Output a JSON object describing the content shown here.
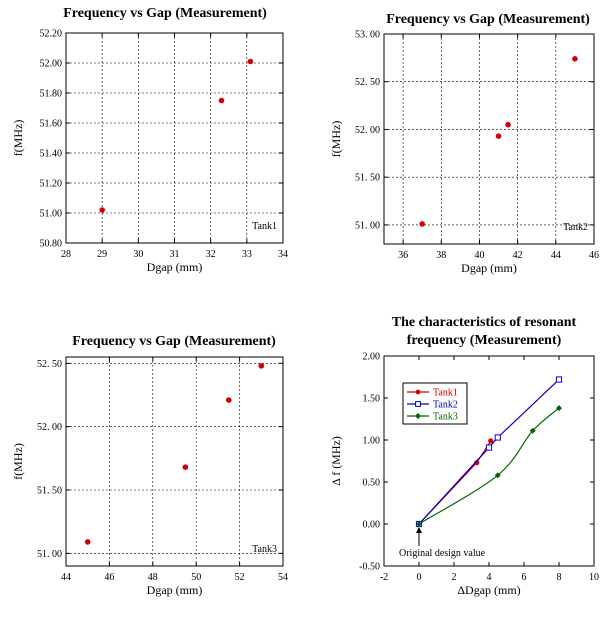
{
  "chart_data": [
    {
      "type": "scatter",
      "title": "Frequency vs Gap (Measurement)",
      "xlabel": "Dgap (mm)",
      "ylabel": "f(MHz)",
      "xlim": [
        28,
        34
      ],
      "ylim": [
        50.8,
        52.2
      ],
      "xticks": [
        "28",
        "29",
        "30",
        "31",
        "32",
        "33",
        "34"
      ],
      "yticks": [
        "50.80",
        "51.00",
        "51.20",
        "51.40",
        "51.60",
        "51.80",
        "52.00",
        "52.20"
      ],
      "grid": true,
      "annotation": "Tank1",
      "marker_color": "#d40000",
      "points": [
        {
          "x": 29.0,
          "y": 51.02
        },
        {
          "x": 32.3,
          "y": 51.75
        },
        {
          "x": 33.1,
          "y": 52.01
        }
      ]
    },
    {
      "type": "scatter",
      "title": "Frequency vs Gap (Measurement)",
      "xlabel": "Dgap (mm)",
      "ylabel": "f(MHz)",
      "xlim": [
        35,
        46
      ],
      "ylim": [
        50.8,
        53.0
      ],
      "xticks": [
        "36",
        "38",
        "40",
        "42",
        "44",
        "46"
      ],
      "yticks": [
        "51. 00",
        "51. 50",
        "52. 00",
        "52. 50",
        "53. 00"
      ],
      "grid": true,
      "annotation": "Tank2",
      "marker_color": "#d40000",
      "points": [
        {
          "x": 37.0,
          "y": 51.01
        },
        {
          "x": 41.0,
          "y": 51.93
        },
        {
          "x": 41.5,
          "y": 52.05
        },
        {
          "x": 45.0,
          "y": 52.74
        }
      ]
    },
    {
      "type": "scatter",
      "title": "Frequency vs Gap (Measurement)",
      "xlabel": "Dgap (mm)",
      "ylabel": "f(MHz)",
      "xlim": [
        44,
        54
      ],
      "ylim": [
        50.9,
        52.55
      ],
      "xticks": [
        "44",
        "46",
        "48",
        "50",
        "52",
        "54"
      ],
      "yticks": [
        "51. 00",
        "51. 50",
        "52. 00",
        "52. 50"
      ],
      "grid": true,
      "annotation": "Tank3",
      "marker_color": "#d40000",
      "points": [
        {
          "x": 45.0,
          "y": 51.09
        },
        {
          "x": 49.5,
          "y": 51.68
        },
        {
          "x": 51.5,
          "y": 52.21
        },
        {
          "x": 53.0,
          "y": 52.48
        }
      ]
    },
    {
      "type": "line",
      "title": "The characteristics of resonant",
      "title2": "frequency (Measurement)",
      "xlabel": "ΔDgap (mm)",
      "ylabel": "Δ f (MHz)",
      "xlim": [
        -2,
        10
      ],
      "ylim": [
        -0.5,
        2.0
      ],
      "xticks": [
        "-2",
        "0",
        "2",
        "4",
        "6",
        "8",
        "10"
      ],
      "yticks": [
        "-0.50",
        "0.00",
        "0.50",
        "1.00",
        "1.50",
        "2.00"
      ],
      "grid": false,
      "legend_position": "top-left",
      "annotation": "Original design value",
      "series": [
        {
          "name": "Tank1",
          "color": "#d40000",
          "marker": "circle",
          "x": [
            0,
            3.3,
            4.1
          ],
          "y": [
            0,
            0.73,
            0.99
          ]
        },
        {
          "name": "Tank2",
          "color": "#0000c8",
          "marker": "square",
          "x": [
            0,
            4.0,
            4.5,
            8.0
          ],
          "y": [
            0,
            0.91,
            1.03,
            1.72
          ]
        },
        {
          "name": "Tank3",
          "color": "#006400",
          "marker": "diamond",
          "x": [
            0,
            4.5,
            6.5,
            8.0
          ],
          "y": [
            0,
            0.58,
            1.11,
            1.38
          ]
        }
      ]
    }
  ]
}
